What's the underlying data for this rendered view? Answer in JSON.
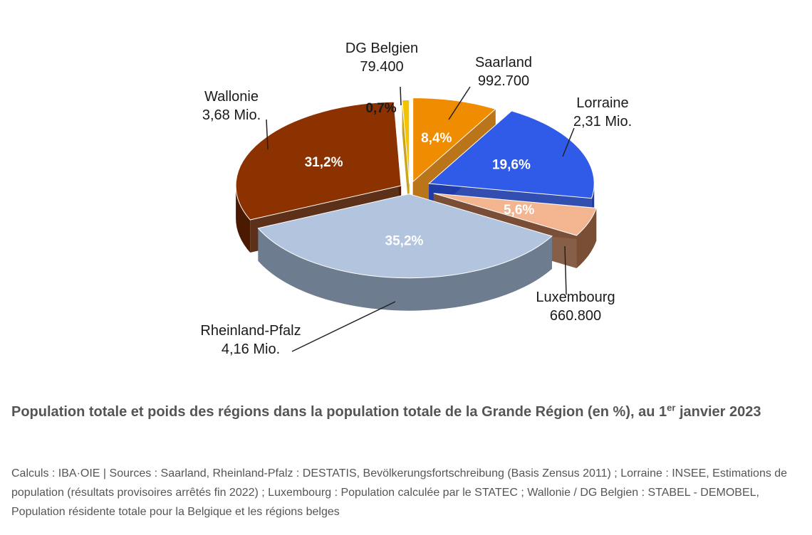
{
  "chart_data": {
    "type": "pie",
    "slices": [
      {
        "key": "saarland",
        "label": "Saarland",
        "value_text": "992.700",
        "percent": 8.4,
        "percent_label": "8,4%",
        "color": "#f08c00"
      },
      {
        "key": "lorraine",
        "label": "Lorraine",
        "value_text": "2,31 Mio.",
        "percent": 19.6,
        "percent_label": "19,6%",
        "color": "#2f5be8"
      },
      {
        "key": "luxembourg",
        "label": "Luxembourg",
        "value_text": "660.800",
        "percent": 5.6,
        "percent_label": "5,6%",
        "color": "#f2b590"
      },
      {
        "key": "rheinland",
        "label": "Rheinland-Pfalz",
        "value_text": "4,16 Mio.",
        "percent": 35.2,
        "percent_label": "35,2%",
        "color": "#b3c5de"
      },
      {
        "key": "wallonie",
        "label": "Wallonie",
        "value_text": "3,68 Mio.",
        "percent": 31.2,
        "percent_label": "31,2%",
        "color": "#8b3200"
      },
      {
        "key": "dg",
        "label": "DG Belgien",
        "value_text": "79.400",
        "percent": 0.7,
        "percent_label": "0,7%",
        "color": "#f5c400"
      }
    ]
  },
  "caption": {
    "main": "Population totale et poids des régions dans la population totale de la Grande Région (en %), au 1",
    "sup": "er",
    "end": " janvier 2023"
  },
  "sources": "Calculs : IBA·OIE | Sources : Saarland, Rheinland-Pfalz : DESTATIS, Bevölkerungsfortschreibung (Basis Zensus 2011) ; Lorraine : INSEE, Estimations de population (résultats provisoires arrêtés fin 2022) ; Luxembourg : Population calculée par le STATEC ; Wallonie / DG Belgien : STABEL - DEMOBEL, Population résidente totale pour la Belgique et les régions belges"
}
